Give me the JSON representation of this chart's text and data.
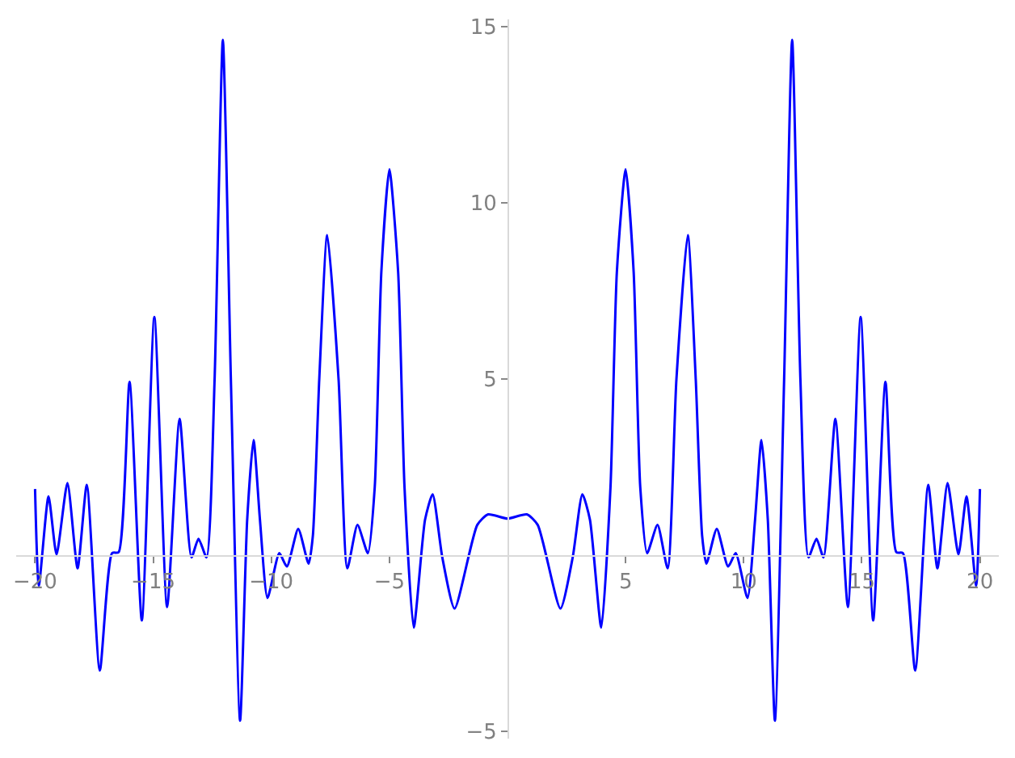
{
  "chart_data": {
    "type": "line",
    "x": [
      -20,
      -19.84,
      -19.43,
      -19.09,
      -18.63,
      -18.2,
      -17.81,
      -17.26,
      -16.74,
      -16.46,
      -16,
      -15.48,
      -14.95,
      -14.41,
      -13.88,
      -13.38,
      -13.08,
      -12.74,
      -12.4,
      -12.05,
      -11.71,
      -11.32,
      -11.02,
      -10.75,
      -10.48,
      -10.16,
      -9.66,
      -9.34,
      -8.86,
      -8.42,
      -8.24,
      -7.97,
      -7.63,
      -7.15,
      -6.78,
      -6.35,
      -5.91,
      -5.62,
      -5.34,
      -5,
      -4.63,
      -4.36,
      -3.97,
      -3.49,
      -3.17,
      -2.76,
      -2.24,
      -1.28,
      -0.82,
      0,
      0.82,
      1.28,
      2.24,
      2.76,
      3.17,
      3.49,
      3.97,
      4.36,
      4.63,
      5,
      5.34,
      5.62,
      5.91,
      6.35,
      6.78,
      7.15,
      7.63,
      7.97,
      8.24,
      8.42,
      8.86,
      9.34,
      9.66,
      10.16,
      10.48,
      10.75,
      11.02,
      11.32,
      11.71,
      12.05,
      12.4,
      12.74,
      13.08,
      13.38,
      13.88,
      14.41,
      14.95,
      15.48,
      16,
      16.46,
      16.74,
      17.26,
      17.81,
      18.2,
      18.63,
      19.09,
      19.43,
      19.84,
      20
    ],
    "series": [
      {
        "color": "#0000ff",
        "values": [
          1.88,
          -0.86,
          1.67,
          0.02,
          2.05,
          -0.37,
          2.0,
          -3.27,
          0.06,
          0.09,
          4.92,
          -1.85,
          6.76,
          -1.47,
          3.87,
          -0.06,
          0.47,
          -0.06,
          4.98,
          14.62,
          4.98,
          -4.69,
          1.01,
          3.27,
          1.01,
          -1.21,
          0.06,
          -0.32,
          0.75,
          -0.24,
          0.55,
          4.98,
          9.08,
          4.98,
          -0.37,
          0.86,
          0.06,
          1.93,
          8.04,
          10.95,
          8.04,
          1.93,
          -2.05,
          1.01,
          1.73,
          -0.06,
          -1.51,
          0.86,
          1.16,
          1.04,
          1.16,
          0.86,
          -1.51,
          -0.06,
          1.73,
          1.01,
          -2.05,
          1.93,
          8.04,
          10.95,
          8.04,
          1.93,
          0.06,
          0.86,
          -0.37,
          4.98,
          9.08,
          4.98,
          0.55,
          -0.24,
          0.75,
          -0.32,
          0.06,
          -1.21,
          1.01,
          3.27,
          1.01,
          -4.69,
          4.98,
          14.62,
          4.98,
          -0.06,
          0.47,
          -0.06,
          3.87,
          -1.47,
          6.76,
          -1.85,
          4.92,
          0.09,
          0.06,
          -3.27,
          2.0,
          -0.37,
          2.05,
          0.02,
          1.67,
          -0.86,
          1.88
        ]
      }
    ],
    "xlim": [
      -20.8,
      20.8
    ],
    "ylim": [
      -5.2,
      15.2
    ],
    "xticks": [
      {
        "value": -20,
        "label": "−20"
      },
      {
        "value": -15,
        "label": "−15"
      },
      {
        "value": -10,
        "label": "−10"
      },
      {
        "value": -5,
        "label": "−5"
      },
      5,
      10,
      15,
      20
    ],
    "yticks": [
      {
        "value": -5,
        "label": "−5"
      },
      5,
      10,
      15
    ],
    "grid": false,
    "legend": false,
    "marker": "none",
    "line_style": "solid"
  }
}
